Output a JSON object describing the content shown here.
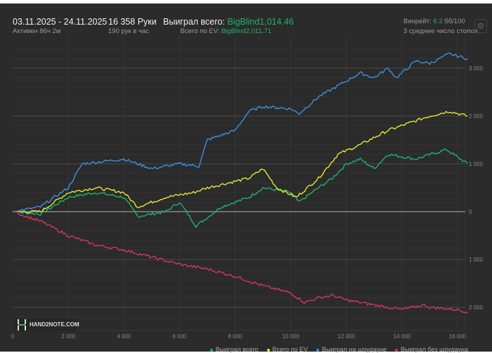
{
  "header": {
    "date_range": "03.11.2025 - 24.11.2025",
    "active": "Активен 86ч 2м",
    "hands": "16 358 Руки",
    "hands_per_hour": "190 рук в час",
    "won_label": "Выиграл всего:",
    "won_value": "BigBlind1,014.46",
    "ev_label": "Всего по EV:",
    "ev_value": "BigBlind2,011.71",
    "winrate_label": "Винрейт:",
    "winrate_value": "6.2",
    "winrate_unit": "бб/100",
    "tables": "3 среднее число столов",
    "settings_icon": "gear-icon"
  },
  "logo": "HAND2NOTE.COM",
  "chart_data": {
    "type": "line",
    "xlabel": "",
    "ylabel": "",
    "xlim": [
      0,
      16358
    ],
    "ylim": [
      -2200,
      3400
    ],
    "x_ticks": [
      0,
      2000,
      4000,
      6000,
      8000,
      10000,
      12000,
      14000,
      16000
    ],
    "x_tick_labels": [
      "0",
      "2 000",
      "4 000",
      "6 000",
      "8 000",
      "10 000",
      "12 000",
      "14 000",
      "16 000"
    ],
    "y_ticks": [
      3000,
      2000,
      1000,
      0,
      -1000,
      -2000
    ],
    "y_tick_labels": [
      "3 000",
      "2 000",
      "1 000",
      "0",
      "1 000",
      "2 000"
    ],
    "grid": true,
    "legend_position": "bottom-right",
    "series": [
      {
        "name": "Выиграл всего",
        "color": "#1fb36b",
        "x": [
          0,
          1000,
          2000,
          3000,
          4000,
          4500,
          5500,
          6000,
          6600,
          7500,
          8500,
          9000,
          10000,
          10300,
          11000,
          11500,
          12000,
          12500,
          13000,
          13500,
          14500,
          15600,
          16358
        ],
        "y": [
          0,
          -50,
          300,
          400,
          300,
          -100,
          0,
          200,
          -300,
          100,
          300,
          500,
          400,
          200,
          500,
          700,
          1000,
          1100,
          900,
          1200,
          1100,
          1300,
          1000
        ]
      },
      {
        "name": "Всего по EV",
        "color": "#e6e635",
        "x": [
          0,
          1000,
          2000,
          3000,
          4000,
          4500,
          5500,
          6500,
          7000,
          8500,
          9000,
          9500,
          10200,
          11000,
          11700,
          12500,
          13500,
          14500,
          15000,
          15700,
          16358
        ],
        "y": [
          0,
          0,
          400,
          500,
          400,
          100,
          300,
          400,
          500,
          700,
          900,
          500,
          300,
          700,
          1200,
          1400,
          1700,
          1900,
          2000,
          2100,
          2000
        ]
      },
      {
        "name": "Выиграл на шоудауне",
        "color": "#3d8fe0",
        "x": [
          0,
          1000,
          2000,
          2500,
          4000,
          5000,
          6000,
          6700,
          7000,
          8000,
          8500,
          9000,
          10000,
          10300,
          11000,
          11600,
          12500,
          13000,
          13500,
          13800,
          14500,
          15000,
          15700,
          16358
        ],
        "y": [
          0,
          100,
          500,
          1000,
          1100,
          900,
          1000,
          950,
          1500,
          1700,
          2100,
          2200,
          2150,
          2050,
          2400,
          2600,
          2900,
          2800,
          3000,
          2800,
          3150,
          3100,
          3300,
          3200
        ]
      },
      {
        "name": "Выиграл без шоудауна",
        "color": "#d6336c",
        "x": [
          0,
          1000,
          2000,
          3000,
          4000,
          5000,
          6000,
          7000,
          8000,
          9000,
          10000,
          10500,
          11000,
          11500,
          12000,
          13000,
          13500,
          14000,
          14800,
          15000,
          16000,
          16358
        ],
        "y": [
          0,
          -200,
          -500,
          -700,
          -800,
          -950,
          -1100,
          -1200,
          -1350,
          -1550,
          -1700,
          -1900,
          -1800,
          -1750,
          -1850,
          -1950,
          -2000,
          -2050,
          -1950,
          -2000,
          -2050,
          -2100
        ]
      }
    ]
  }
}
